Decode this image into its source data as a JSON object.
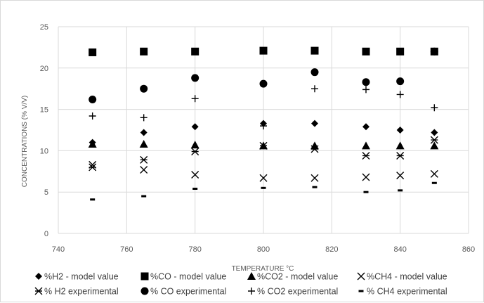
{
  "chart_data": {
    "type": "scatter",
    "xlabel": "TEMPERATURE °C",
    "ylabel": "CONCENTRATIONS (% V/V)",
    "xlim": [
      740,
      860
    ],
    "ylim": [
      0,
      25
    ],
    "xticks": [
      740,
      760,
      780,
      800,
      820,
      840,
      860
    ],
    "yticks": [
      0,
      5,
      10,
      15,
      20,
      25
    ],
    "grid": true,
    "legend_position": "bottom",
    "colors": {
      "marker": "#000000",
      "grid": "#d9d9d9",
      "text": "#595959"
    },
    "series": [
      {
        "name": "%H2 - model value",
        "marker": "diamond",
        "points": [
          [
            750,
            11.0
          ],
          [
            765,
            12.2
          ],
          [
            780,
            12.9
          ],
          [
            800,
            13.3
          ],
          [
            815,
            13.3
          ],
          [
            830,
            12.9
          ],
          [
            840,
            12.5
          ],
          [
            850,
            12.2
          ]
        ]
      },
      {
        "name": "%CO - model value",
        "marker": "square",
        "points": [
          [
            750,
            21.9
          ],
          [
            765,
            22.0
          ],
          [
            780,
            22.0
          ],
          [
            800,
            22.1
          ],
          [
            815,
            22.1
          ],
          [
            830,
            22.0
          ],
          [
            840,
            22.0
          ],
          [
            850,
            22.0
          ]
        ]
      },
      {
        "name": "%CO2 - model value",
        "marker": "triangle",
        "points": [
          [
            750,
            10.8
          ],
          [
            765,
            10.8
          ],
          [
            780,
            10.7
          ],
          [
            800,
            10.6
          ],
          [
            815,
            10.6
          ],
          [
            830,
            10.6
          ],
          [
            840,
            10.6
          ],
          [
            850,
            10.6
          ]
        ]
      },
      {
        "name": "%CH4 - model value",
        "marker": "x",
        "points": [
          [
            750,
            8.3
          ],
          [
            765,
            7.7
          ],
          [
            780,
            7.1
          ],
          [
            800,
            6.7
          ],
          [
            815,
            6.7
          ],
          [
            830,
            6.8
          ],
          [
            840,
            7.0
          ],
          [
            850,
            7.2
          ]
        ]
      },
      {
        "name": "% H2 experimental",
        "marker": "star",
        "points": [
          [
            750,
            8.0
          ],
          [
            765,
            8.9
          ],
          [
            780,
            9.9
          ],
          [
            800,
            10.6
          ],
          [
            815,
            10.2
          ],
          [
            830,
            9.4
          ],
          [
            840,
            9.4
          ],
          [
            850,
            11.3
          ]
        ]
      },
      {
        "name": "% CO experimental",
        "marker": "circle",
        "points": [
          [
            750,
            16.2
          ],
          [
            765,
            17.5
          ],
          [
            780,
            18.8
          ],
          [
            800,
            18.1
          ],
          [
            815,
            19.5
          ],
          [
            830,
            18.3
          ],
          [
            840,
            18.4
          ],
          [
            850,
            22.0
          ]
        ]
      },
      {
        "name": "% CO2 experimental",
        "marker": "plus",
        "points": [
          [
            750,
            14.2
          ],
          [
            765,
            14.0
          ],
          [
            780,
            16.3
          ],
          [
            800,
            13.0
          ],
          [
            815,
            17.5
          ],
          [
            830,
            17.4
          ],
          [
            840,
            16.8
          ],
          [
            850,
            15.2
          ]
        ]
      },
      {
        "name": "% CH4 experimental",
        "marker": "dash",
        "points": [
          [
            750,
            4.1
          ],
          [
            765,
            4.5
          ],
          [
            780,
            5.4
          ],
          [
            800,
            5.5
          ],
          [
            815,
            5.6
          ],
          [
            830,
            5.0
          ],
          [
            840,
            5.2
          ],
          [
            850,
            6.1
          ]
        ]
      }
    ]
  }
}
